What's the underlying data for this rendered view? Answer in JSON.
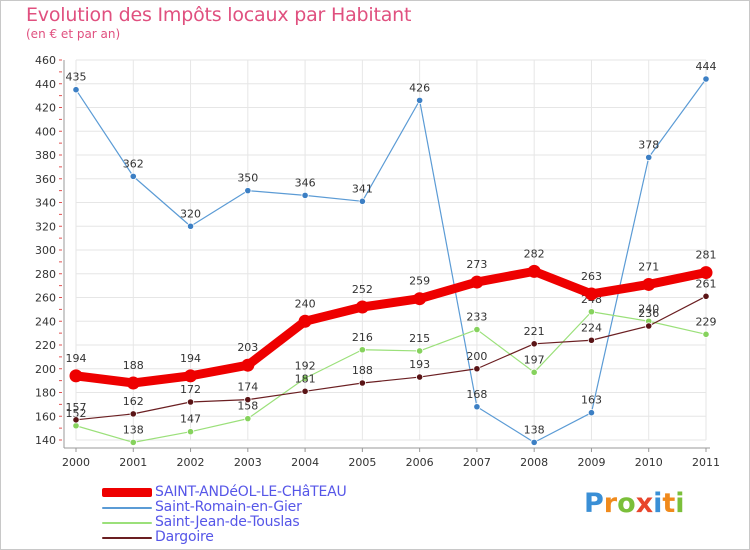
{
  "chart_data": {
    "type": "line",
    "title": "Evolution des Impôts locaux par Habitant",
    "subtitle": "(en € et par an)",
    "xlabel": "",
    "ylabel": "",
    "x": [
      "2000",
      "2001",
      "2002",
      "2003",
      "2004",
      "2005",
      "2006",
      "2007",
      "2008",
      "2009",
      "2010",
      "2011"
    ],
    "ylim": [
      140,
      460
    ],
    "yticks": [
      140,
      160,
      180,
      200,
      220,
      240,
      260,
      280,
      300,
      320,
      340,
      360,
      380,
      400,
      420,
      440,
      460
    ],
    "series": [
      {
        "name": "SAINT-ANDéOL-LE-CHâTEAU",
        "color": "#ee0000",
        "values": [
          194,
          188,
          194,
          203,
          240,
          252,
          259,
          273,
          282,
          263,
          271,
          281
        ]
      },
      {
        "name": "Saint-Romain-en-Gier",
        "color": "#5b9bd5",
        "values": [
          435,
          362,
          320,
          350,
          346,
          341,
          426,
          168,
          138,
          163,
          378,
          444
        ]
      },
      {
        "name": "Saint-Jean-de-Touslas",
        "color": "#9be07a",
        "values": [
          152,
          138,
          147,
          158,
          192,
          216,
          215,
          233,
          197,
          248,
          240,
          229
        ]
      },
      {
        "name": "Dargoire",
        "color": "#6b1f22",
        "values": [
          157,
          162,
          172,
          174,
          181,
          188,
          193,
          200,
          221,
          224,
          236,
          261
        ]
      }
    ]
  },
  "brand": {
    "letters": [
      "P",
      "r",
      "o",
      "x",
      "i",
      "t",
      "i"
    ],
    "colors": [
      "#3a8fd6",
      "#f08a1c",
      "#7bbf3a",
      "#e8452c",
      "#3a8fd6",
      "#f08a1c",
      "#7bbf3a"
    ]
  }
}
